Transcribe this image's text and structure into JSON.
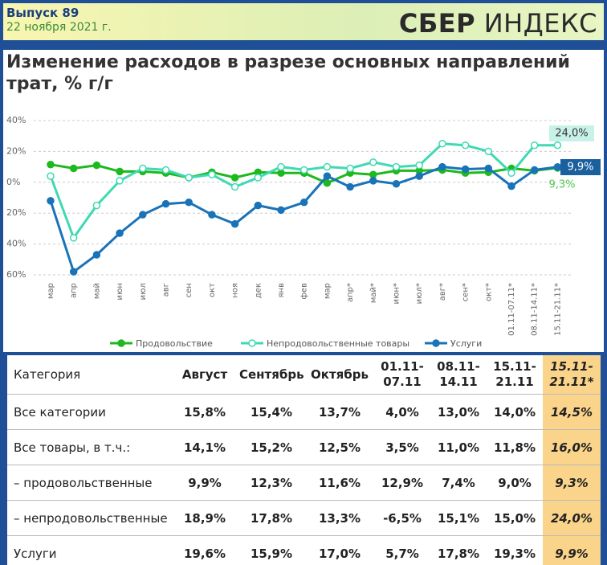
{
  "header": {
    "issue": "Выпуск 89",
    "date": "22 ноября 2021 г.",
    "logo_bold": "СБЕР",
    "logo_light": "ИНДЕКС"
  },
  "chart_data": {
    "type": "line",
    "title": "Изменение расходов в разрезе основных направлений трат, % г/г",
    "categories": [
      "мар",
      "апр",
      "май",
      "июн",
      "июл",
      "авг",
      "сен",
      "окт",
      "ноя",
      "дек",
      "янв",
      "фев",
      "мар",
      "апр*",
      "май*",
      "июн*",
      "июл*",
      "авг*",
      "сен*",
      "окт*",
      "01.11-07.11*",
      "08.11-14.11*",
      "15.11-21.11*"
    ],
    "series": [
      {
        "name": "Продовольствие",
        "color": "#1db91d",
        "marker_fill": "#1db91d",
        "values": [
          11.5,
          9,
          11,
          7,
          7,
          6,
          3,
          6.5,
          3,
          6.5,
          6,
          6,
          -0.5,
          6,
          5,
          7.5,
          7.5,
          8,
          6,
          6.5,
          9,
          7.5,
          9.3
        ]
      },
      {
        "name": "Непродовольственные товары",
        "color": "#3fd9b3",
        "marker_fill": "#ffffff",
        "values": [
          4,
          -36,
          -15,
          1,
          9,
          8,
          3,
          5,
          -3,
          3,
          10,
          8,
          10,
          9,
          13,
          10,
          11,
          25,
          24,
          20,
          6,
          24,
          24
        ]
      },
      {
        "name": "Услуги",
        "color": "#1a73b8",
        "marker_fill": "#1a73b8",
        "values": [
          -12,
          -58,
          -47,
          -33,
          -21,
          -14,
          -13,
          -21,
          -27,
          -15,
          -18,
          -13,
          4,
          -3,
          1,
          -1,
          4,
          10,
          8.5,
          9,
          -2.5,
          8,
          9.9
        ]
      }
    ],
    "ylim": [
      -60,
      40
    ],
    "yticks": [
      {
        "value": -60,
        "label": "60%"
      },
      {
        "value": -40,
        "label": "40%"
      },
      {
        "value": -20,
        "label": "20%"
      },
      {
        "value": 0,
        "label": "0%"
      },
      {
        "value": 20,
        "label": "20%"
      },
      {
        "value": 40,
        "label": "40%"
      }
    ],
    "grid": true,
    "legend": "bottom",
    "annotations": [
      {
        "text": "24,0%",
        "series": 1
      },
      {
        "text": "9,9%",
        "series": 2
      },
      {
        "text": "9,3%",
        "series": 0
      }
    ]
  },
  "table": {
    "columns": [
      "Категория",
      "Август",
      "Сентябрь",
      "Октябрь",
      "01.11-07.11",
      "08.11-14.11",
      "15.11-21.11",
      "15.11-21.11*"
    ],
    "rows": [
      [
        "Все категории",
        "15,8%",
        "15,4%",
        "13,7%",
        "4,0%",
        "13,0%",
        "14,0%",
        "14,5%"
      ],
      [
        "Все товары, в т.ч.:",
        "14,1%",
        "15,2%",
        "12,5%",
        "3,5%",
        "11,0%",
        "11,8%",
        "16,0%"
      ],
      [
        "– продовольственные",
        "9,9%",
        "12,3%",
        "11,6%",
        "12,9%",
        "7,4%",
        "9,0%",
        "9,3%"
      ],
      [
        "– непродовольственные",
        "18,9%",
        "17,8%",
        "13,3%",
        "-6,5%",
        "15,1%",
        "15,0%",
        "24,0%"
      ],
      [
        "Услуги",
        "19,6%",
        "15,9%",
        "17,0%",
        "5,7%",
        "17,8%",
        "19,3%",
        "9,9%"
      ]
    ]
  }
}
